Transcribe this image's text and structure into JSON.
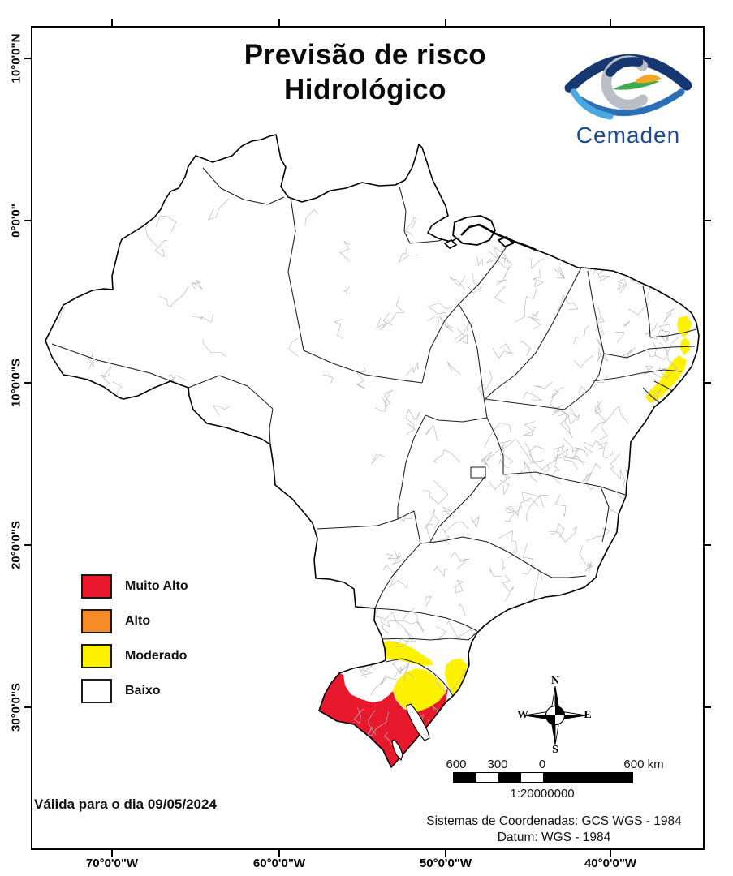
{
  "title": {
    "line1": "Previsão de risco",
    "line2": "Hidrológico"
  },
  "logo": {
    "name": "Cemaden",
    "brand_color": "#1e4b8f"
  },
  "legend": {
    "items": [
      {
        "label": "Muito Alto",
        "color": "#e8182d"
      },
      {
        "label": "Alto",
        "color": "#f68b28"
      },
      {
        "label": "Moderado",
        "color": "#fef102"
      },
      {
        "label": "Baixo",
        "color": "#ffffff"
      }
    ]
  },
  "map": {
    "land_color": "#ffffff",
    "outline_color": "#000000",
    "state_border_color": "#1c1c1c",
    "municipal_border_color": "#b9b9b9"
  },
  "axes": {
    "latitude_labels": [
      "10°0'0\"N",
      "0°0'0\"",
      "10°0'0\"S",
      "20°0'0\"S",
      "30°0'0\"S"
    ],
    "longitude_labels": [
      "70°0'0\"W",
      "60°0'0\"W",
      "50°0'0\"W",
      "40°0'0\"W"
    ]
  },
  "compass": {
    "north": "N",
    "south": "S",
    "east": "E",
    "west": "W"
  },
  "scale_bar": {
    "tick_labels": [
      "600",
      "300",
      "0",
      "600 km"
    ],
    "ratio_text": "1:20000000"
  },
  "validity_text": "Válida para o dia 09/05/2024",
  "datum": {
    "line1": "Sistemas de Coordenadas: GCS WGS - 1984",
    "line2": "Datum: WGS - 1984"
  }
}
